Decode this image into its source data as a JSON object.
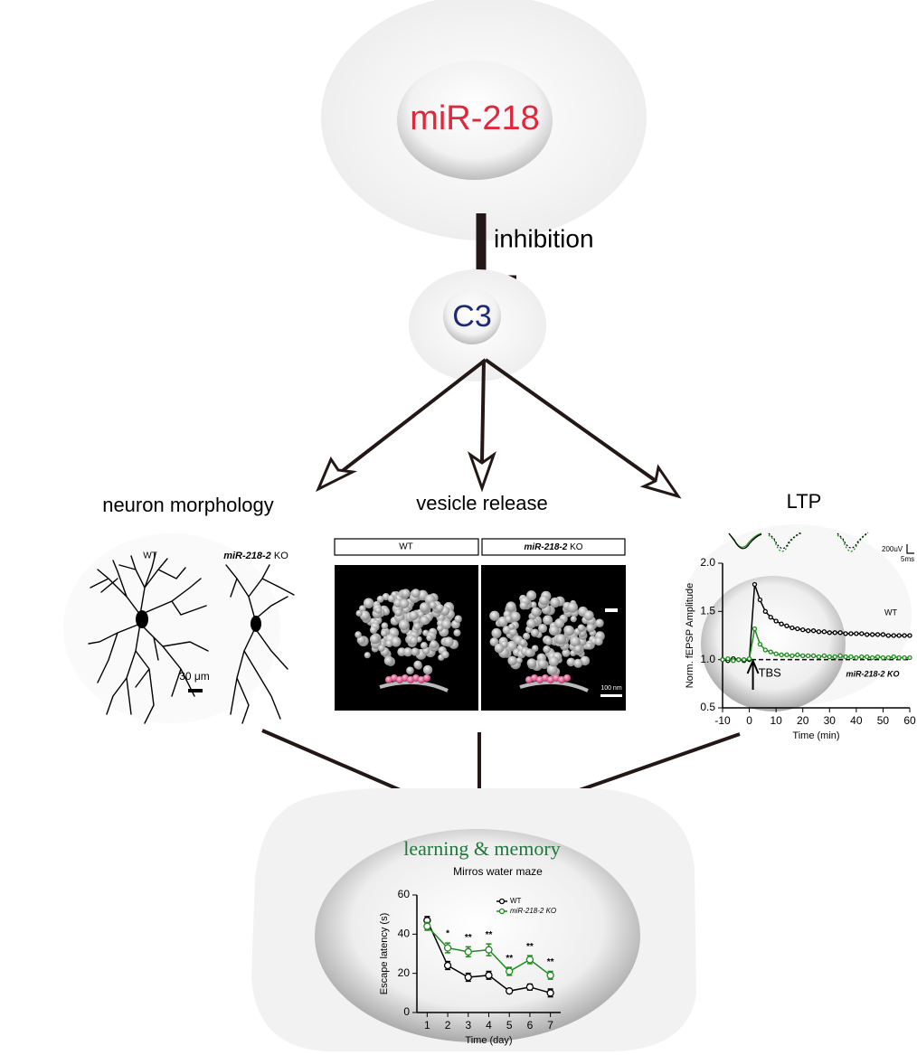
{
  "diagram": {
    "source": "miR-218",
    "relation": "inhibition",
    "target": "C3",
    "effects": [
      "neuron morphology",
      "vesicle release",
      "LTP"
    ],
    "outcome": "learning & memory"
  },
  "morphology": {
    "wt": "WT",
    "ko": {
      "gene": "miR-218-2",
      "suffix": "KO"
    },
    "scale_bar": "30 μm"
  },
  "vesicle": {
    "wt": "WT",
    "ko": {
      "gene": "miR-218-2",
      "suffix": "KO"
    },
    "scale_bar": "100 nm"
  },
  "ltp_traces": {
    "amplitude": "200uV",
    "time": "5ms"
  },
  "chart_data": [
    {
      "type": "line",
      "xlabel": "Time (min)",
      "ylabel": "Norm. fEPSP Amplitude",
      "x": [
        -10,
        -8,
        -6,
        -4,
        -2,
        0,
        2,
        4,
        6,
        8,
        10,
        12,
        14,
        16,
        18,
        20,
        22,
        24,
        26,
        28,
        30,
        32,
        34,
        36,
        38,
        40,
        42,
        44,
        46,
        48,
        50,
        52,
        54,
        56,
        58,
        60
      ],
      "series": [
        {
          "name": "WT",
          "color": "#000000",
          "values": [
            1.0,
            0.99,
            1.01,
            1.0,
            0.99,
            1.0,
            1.78,
            1.62,
            1.5,
            1.44,
            1.4,
            1.37,
            1.35,
            1.33,
            1.32,
            1.31,
            1.3,
            1.3,
            1.29,
            1.29,
            1.28,
            1.28,
            1.28,
            1.27,
            1.27,
            1.27,
            1.27,
            1.26,
            1.26,
            1.26,
            1.26,
            1.25,
            1.25,
            1.25,
            1.25,
            1.25
          ]
        },
        {
          "name": "miR-218-2 KO",
          "color": "#1a8c1a",
          "values": [
            1.0,
            1.01,
            0.99,
            1.0,
            1.0,
            1.01,
            1.32,
            1.16,
            1.1,
            1.08,
            1.06,
            1.05,
            1.05,
            1.04,
            1.05,
            1.04,
            1.04,
            1.04,
            1.03,
            1.04,
            1.03,
            1.03,
            1.04,
            1.03,
            1.03,
            1.02,
            1.03,
            1.03,
            1.02,
            1.03,
            1.02,
            1.02,
            1.03,
            1.02,
            1.02,
            1.02
          ]
        }
      ],
      "xlim": [
        -10,
        60
      ],
      "xticks": [
        -10,
        0,
        10,
        20,
        30,
        40,
        50,
        60
      ],
      "ylim": [
        0.5,
        2.0
      ],
      "yticks": [
        0.5,
        {
          "value": 1,
          "label": "1.0"
        },
        1.5,
        {
          "value": 2,
          "label": "2.0"
        }
      ],
      "hline": 1,
      "annotation": {
        "text": "TBS",
        "x": 0
      }
    },
    {
      "type": "line",
      "title": "Mirros water maze",
      "xlabel": "Time (day)",
      "ylabel": "Escape latency (s)",
      "x": [
        1,
        2,
        3,
        4,
        5,
        6,
        7
      ],
      "series": [
        {
          "name": "WT",
          "color": "#000000",
          "values": [
            47,
            24,
            18,
            19,
            11,
            13,
            10
          ],
          "errors": [
            2,
            2,
            2,
            2,
            1,
            1.5,
            2
          ]
        },
        {
          "name": "miR-218-2 KO",
          "color": "#1a8c1a",
          "values": [
            44,
            33,
            31,
            32,
            21,
            27,
            19
          ],
          "errors": [
            2,
            2.5,
            2.5,
            3,
            2,
            2,
            2
          ]
        }
      ],
      "xlim": [
        0.5,
        7.5
      ],
      "xticks": [
        1,
        2,
        3,
        4,
        5,
        6,
        7
      ],
      "ylim": [
        0,
        60
      ],
      "yticks": [
        0,
        20,
        40,
        60
      ],
      "legend": "top",
      "annotations": [
        {
          "x": 2,
          "text": "*"
        },
        {
          "x": 3,
          "text": "**"
        },
        {
          "x": 4,
          "text": "**"
        },
        {
          "x": 5,
          "text": "**"
        },
        {
          "x": 6,
          "text": "**"
        },
        {
          "x": 7,
          "text": "**"
        }
      ]
    }
  ]
}
